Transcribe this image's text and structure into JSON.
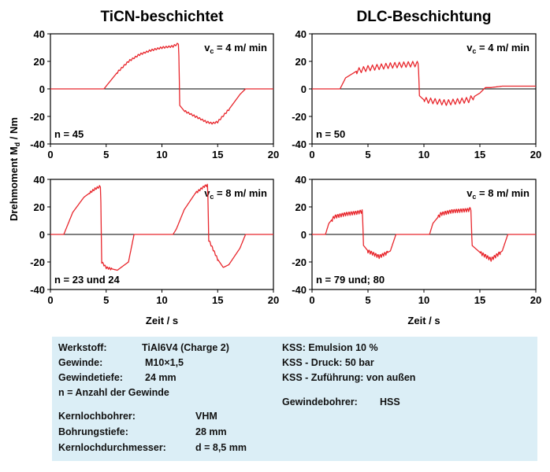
{
  "y_axis_label": "Drehmoment  M",
  "y_axis_label_sub": "d",
  "y_axis_label_unit": " / Nm",
  "chart_data": [
    {
      "type": "line",
      "title": "TiCN-beschichtet",
      "annotation_speed_main": "v",
      "annotation_speed_sub": "c",
      "annotation_speed_rest": " = 4 m/ min",
      "annotation_n": "n = 45",
      "xlabel": "",
      "ylabel": "Drehmoment Md / Nm",
      "xlim": [
        0,
        20
      ],
      "ylim": [
        -40,
        40
      ],
      "xticks": [
        0,
        5,
        10,
        15,
        20
      ],
      "yticks": [
        -40,
        -20,
        0,
        20,
        40
      ],
      "grid": false,
      "legend": "none",
      "line_color": "#e8262c",
      "x": [
        0,
        4.8,
        5,
        6,
        7,
        8,
        9,
        10,
        11,
        11.5,
        11.6,
        12,
        13,
        14,
        14.5,
        15,
        16,
        17,
        17.5,
        18,
        20
      ],
      "y": [
        0,
        0,
        2,
        12,
        20,
        25,
        28,
        30,
        31,
        33,
        -12,
        -16,
        -20,
        -24,
        -25,
        -24,
        -15,
        -4,
        0,
        0,
        0
      ],
      "ripple": {
        "amplitude": 1.5,
        "period": 0.25,
        "ranges": [
          [
            6,
            11.5
          ],
          [
            12,
            16
          ]
        ]
      }
    },
    {
      "type": "line",
      "title": "DLC-Beschichtung",
      "annotation_speed_main": "v",
      "annotation_speed_sub": "c",
      "annotation_speed_rest": " = 4 m/ min",
      "annotation_n": "n = 50",
      "xlabel": "",
      "ylabel": "",
      "xlim": [
        0,
        20
      ],
      "ylim": [
        -40,
        40
      ],
      "xticks": [
        0,
        5,
        10,
        15,
        20
      ],
      "yticks": [
        -40,
        -20,
        0,
        20,
        40
      ],
      "grid": false,
      "legend": "none",
      "line_color": "#e8262c",
      "x": [
        0,
        2.5,
        3,
        4,
        5,
        6,
        7,
        9,
        9.5,
        9.6,
        10,
        12,
        14,
        15,
        15.5,
        16,
        17,
        20
      ],
      "y": [
        0,
        0,
        8,
        13,
        15,
        16,
        17,
        18,
        18,
        -5,
        -8,
        -10,
        -8,
        -3,
        1,
        1,
        2,
        2
      ],
      "ripple": {
        "amplitude": 4,
        "period": 0.4,
        "ranges": [
          [
            4,
            9.5
          ],
          [
            10,
            14.5
          ]
        ]
      }
    },
    {
      "type": "line",
      "title": "",
      "annotation_speed_main": "v",
      "annotation_speed_sub": "c",
      "annotation_speed_rest": " = 8 m/ min",
      "annotation_n": "n = 23 und  24",
      "xlabel": "Zeit / s",
      "ylabel": "Drehmoment Md / Nm",
      "xlim": [
        0,
        20
      ],
      "ylim": [
        -40,
        40
      ],
      "xticks": [
        0,
        5,
        10,
        15,
        20
      ],
      "yticks": [
        -40,
        -20,
        0,
        20,
        40
      ],
      "grid": false,
      "legend": "none",
      "line_color": "#e8262c",
      "x": [
        0,
        1.2,
        1.5,
        2,
        3,
        4,
        4.5,
        4.6,
        5,
        6,
        7,
        7.5,
        8,
        11,
        11.3,
        12,
        13,
        13.8,
        14.1,
        14.2,
        15,
        15.5,
        16,
        17,
        17.5,
        18,
        20
      ],
      "y": [
        0,
        0,
        6,
        16,
        27,
        33,
        35,
        -20,
        -24,
        -26,
        -20,
        0,
        0,
        0,
        4,
        18,
        30,
        35,
        36,
        -4,
        -18,
        -24,
        -22,
        -10,
        0,
        0,
        0
      ],
      "ripple": {
        "amplitude": 1.8,
        "period": 0.2,
        "ranges": [
          [
            3.5,
            4.6
          ],
          [
            13,
            14.2
          ],
          [
            4.6,
            5.5
          ],
          [
            14.2,
            15
          ]
        ]
      }
    },
    {
      "type": "line",
      "title": "",
      "annotation_speed_main": "v",
      "annotation_speed_sub": "c",
      "annotation_speed_rest": " = 8 m/ min",
      "annotation_n": "n = 79 und; 80",
      "xlabel": "Zeit / s",
      "ylabel": "",
      "xlim": [
        0,
        20
      ],
      "ylim": [
        -40,
        40
      ],
      "xticks": [
        0,
        5,
        10,
        15,
        20
      ],
      "yticks": [
        -40,
        -20,
        0,
        20,
        40
      ],
      "grid": false,
      "legend": "none",
      "line_color": "#e8262c",
      "x": [
        0,
        1.2,
        1.5,
        2,
        3,
        4,
        4.5,
        4.6,
        5,
        6,
        7,
        7.5,
        8,
        10.5,
        10.8,
        11.5,
        12.5,
        14,
        14.2,
        14.3,
        15,
        16,
        17,
        17.5,
        18,
        20
      ],
      "y": [
        0,
        0,
        8,
        13,
        15,
        16,
        17,
        -8,
        -12,
        -16,
        -12,
        0,
        0,
        0,
        8,
        15,
        17,
        18,
        19,
        -8,
        -13,
        -18,
        -12,
        0,
        0,
        0
      ],
      "ripple": {
        "amplitude": 3,
        "period": 0.2,
        "ranges": [
          [
            1.8,
            4.5
          ],
          [
            11.2,
            14.2
          ],
          [
            5,
            6.8
          ],
          [
            15,
            16.8
          ]
        ]
      }
    }
  ],
  "info_box": {
    "werkstoff_label": "Werkstoff:",
    "werkstoff_value": "TiAl6V4 (Charge 2)",
    "gewinde_label": "Gewinde:",
    "gewinde_value": "M10×1,5",
    "gewindetiefe_label": "Gewindetiefe:",
    "gewindetiefe_value": "24 mm",
    "n_note": "n  = Anzahl der Gewinde",
    "kernlochbohrer_label": "Kernlochbohrer:",
    "kernlochbohrer_value": "VHM",
    "bohrungstiefe_label": "Bohrungstiefe:",
    "bohrungstiefe_value": "28 mm",
    "kernlochdurchmesser_label": "Kernlochdurchmesser:",
    "kernlochdurchmesser_value": "d = 8,5 mm",
    "kss": "KSS: Emulsion 10 %",
    "kss_druck": "KSS - Druck: 50 bar",
    "kss_zufuehrung": "KSS - Zuführung: von außen",
    "gewindebohrer_label": "Gewindebohrer:",
    "gewindebohrer_value": "HSS"
  }
}
